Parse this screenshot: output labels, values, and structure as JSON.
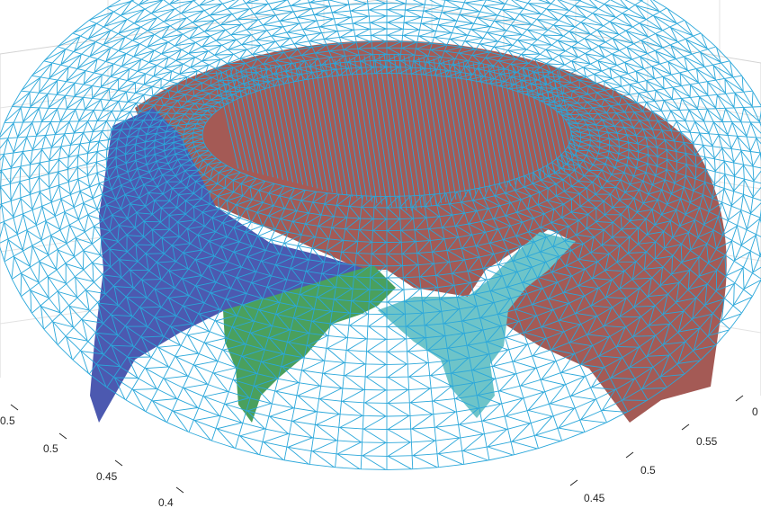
{
  "chart_data": {
    "type": "surface",
    "description_of_marks": "3-D wire-frame dome surface with colored patches",
    "x_ticks_left": [
      "0.5",
      "0.5",
      "0.45",
      "0.4"
    ],
    "y_ticks_right": [
      "0",
      "0.55",
      "0.5",
      "0.45"
    ],
    "patches": [
      {
        "color": "#a45a55"
      },
      {
        "color": "#4c59b0"
      },
      {
        "color": "#4aa05d"
      },
      {
        "color": "#6ec4c9"
      }
    ],
    "mesh_color": "#2aa7da",
    "grid": true
  }
}
